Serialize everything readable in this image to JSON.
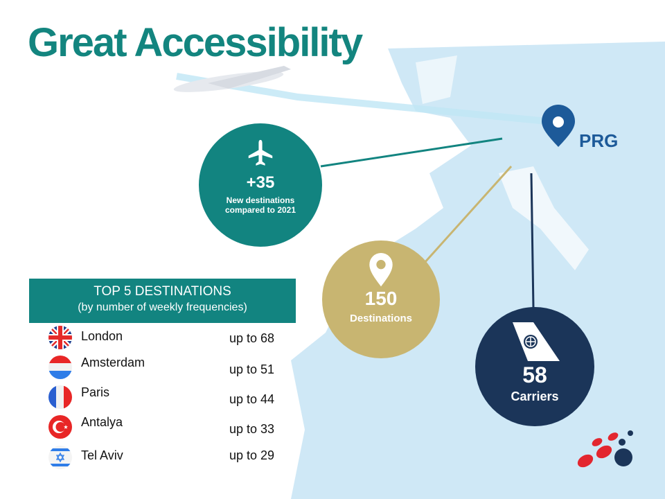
{
  "title": "Great Accessibility",
  "airport_code": "PRG",
  "stats": [
    {
      "icon": "airplane-icon",
      "value": "+35",
      "label": "New destinations compared to 2021",
      "color": "#128480"
    },
    {
      "icon": "map-pin-icon",
      "value": "150",
      "label": "Destinations",
      "color": "#c8b571"
    },
    {
      "icon": "airline-tail-icon",
      "value": "58",
      "label": "Carriers",
      "color": "#1b3559"
    }
  ],
  "top_destinations": {
    "heading": "TOP 5 DESTINATIONS",
    "subheading": "(by number of weekly frequencies)",
    "items": [
      {
        "flag": "uk-flag-icon",
        "city": "London",
        "value": "up to 68"
      },
      {
        "flag": "netherlands-flag-icon",
        "city": "Amsterdam",
        "value": "up to 51"
      },
      {
        "flag": "france-flag-icon",
        "city": "Paris",
        "value": "up to 44"
      },
      {
        "flag": "turkey-flag-icon",
        "city": "Antalya",
        "value": "up to 33"
      },
      {
        "flag": "israel-flag-icon",
        "city": "Tel Aviv",
        "value": "up to 29"
      }
    ]
  },
  "colors": {
    "teal": "#128480",
    "gold": "#c8b571",
    "navy": "#1b3559",
    "map": "#cfe8f6"
  }
}
